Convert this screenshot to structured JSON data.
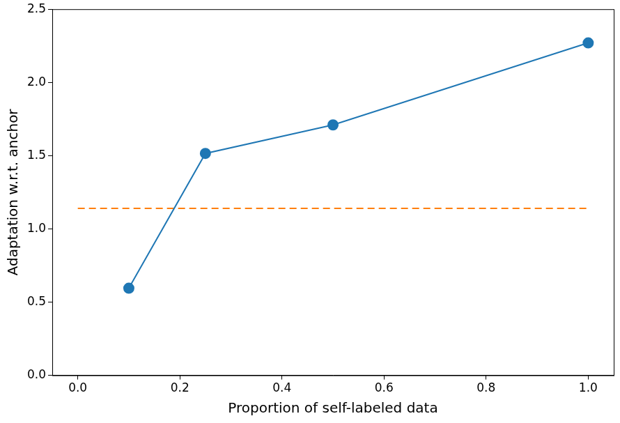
{
  "chart_data": {
    "type": "line",
    "x_label": "Proportion of self-labeled data",
    "y_label": "Adaptation w.r.t. anchor",
    "series": [
      {
        "x": [
          0.1,
          0.25,
          0.5,
          1.0
        ],
        "values": [
          0.595,
          1.515,
          1.71,
          2.27
        ],
        "color": "#1f77b4",
        "marker": "circle",
        "line_style": "solid"
      },
      {
        "x": [
          0.0,
          1.0
        ],
        "values": [
          1.14,
          1.14
        ],
        "color": "#ff7f0e",
        "marker": "none",
        "line_style": "dashed"
      }
    ],
    "xlim": [
      -0.05,
      1.05
    ],
    "xticks": [
      {
        "value": 0,
        "label": "0.0"
      },
      {
        "value": 0.2,
        "label": "0.2"
      },
      {
        "value": 0.4,
        "label": "0.4"
      },
      {
        "value": 0.6,
        "label": "0.6"
      },
      {
        "value": 0.8,
        "label": "0.8"
      },
      {
        "value": 1,
        "label": "1.0"
      }
    ],
    "ylim": [
      0,
      2.5
    ],
    "yticks": [
      {
        "value": 0,
        "label": "0.0"
      },
      {
        "value": 0.5,
        "label": "0.5"
      },
      {
        "value": 1,
        "label": "1.0"
      },
      {
        "value": 1.5,
        "label": "1.5"
      },
      {
        "value": 2,
        "label": "2.0"
      },
      {
        "value": 2.5,
        "label": "2.5"
      }
    ],
    "grid": false
  }
}
